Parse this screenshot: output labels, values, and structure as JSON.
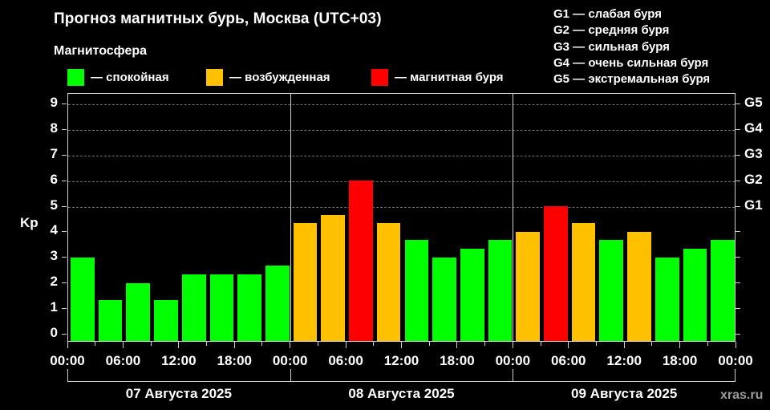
{
  "header": {
    "title": "Прогноз магнитных бурь, Москва (UTC+03)",
    "subtitle": "Магнитосфера"
  },
  "legend": [
    {
      "label": "— спокойная",
      "color": "#00ff00"
    },
    {
      "label": "— возбужденная",
      "color": "#ffc000"
    },
    {
      "label": "— магнитная буря",
      "color": "#ff0000"
    }
  ],
  "g_legend": [
    "G1 — слабая буря",
    "G2 — средняя буря",
    "G3 — сильная буря",
    "G4 — очень сильная буря",
    "G5 — экстремальная буря"
  ],
  "watermark": "xras.ru",
  "chart_data": {
    "type": "bar",
    "title": "Прогноз магнитных бурь, Москва (UTC+03)",
    "xlabel": "",
    "ylabel": "Kp",
    "ylim": [
      0,
      9
    ],
    "yticks": [
      0,
      1,
      2,
      3,
      4,
      5,
      6,
      7,
      8,
      9
    ],
    "right_axis_labels": [
      {
        "y": 5,
        "label": "G1"
      },
      {
        "y": 6,
        "label": "G2"
      },
      {
        "y": 7,
        "label": "G3"
      },
      {
        "y": 8,
        "label": "G4"
      },
      {
        "y": 9,
        "label": "G5"
      }
    ],
    "grid": "dashed horizontal at Kp 5-9",
    "xtick_labels": [
      "00:00",
      "06:00",
      "12:00",
      "18:00",
      "00:00",
      "06:00",
      "12:00",
      "18:00",
      "00:00",
      "06:00",
      "12:00",
      "18:00",
      "00:00"
    ],
    "days": [
      "07 Августа 2025",
      "08 Августа 2025",
      "09 Августа 2025"
    ],
    "categories": [
      "07.08 00-03",
      "07.08 03-06",
      "07.08 06-09",
      "07.08 09-12",
      "07.08 12-15",
      "07.08 15-18",
      "07.08 18-21",
      "07.08 21-24",
      "08.08 00-03",
      "08.08 03-06",
      "08.08 06-09",
      "08.08 09-12",
      "08.08 12-15",
      "08.08 15-18",
      "08.08 18-21",
      "08.08 21-24",
      "09.08 00-03",
      "09.08 03-06",
      "09.08 06-09",
      "09.08 09-12",
      "09.08 12-15",
      "09.08 15-18",
      "09.08 18-21",
      "09.08 21-24"
    ],
    "values": [
      3.0,
      1.33,
      2.0,
      1.33,
      2.33,
      2.33,
      2.33,
      2.67,
      4.33,
      4.67,
      6.0,
      4.33,
      3.67,
      3.0,
      3.33,
      3.67,
      4.0,
      5.0,
      4.33,
      3.67,
      4.0,
      3.0,
      3.33,
      3.67
    ],
    "status": [
      "calm",
      "calm",
      "calm",
      "calm",
      "calm",
      "calm",
      "calm",
      "calm",
      "excited",
      "excited",
      "storm",
      "excited",
      "calm",
      "calm",
      "calm",
      "calm",
      "excited",
      "storm",
      "excited",
      "calm",
      "excited",
      "calm",
      "calm",
      "calm"
    ],
    "colors": {
      "calm": "#00ff00",
      "excited": "#ffc000",
      "storm": "#ff0000"
    },
    "legend": [
      "— спокойная",
      "— возбужденная",
      "— магнитная буря"
    ]
  }
}
